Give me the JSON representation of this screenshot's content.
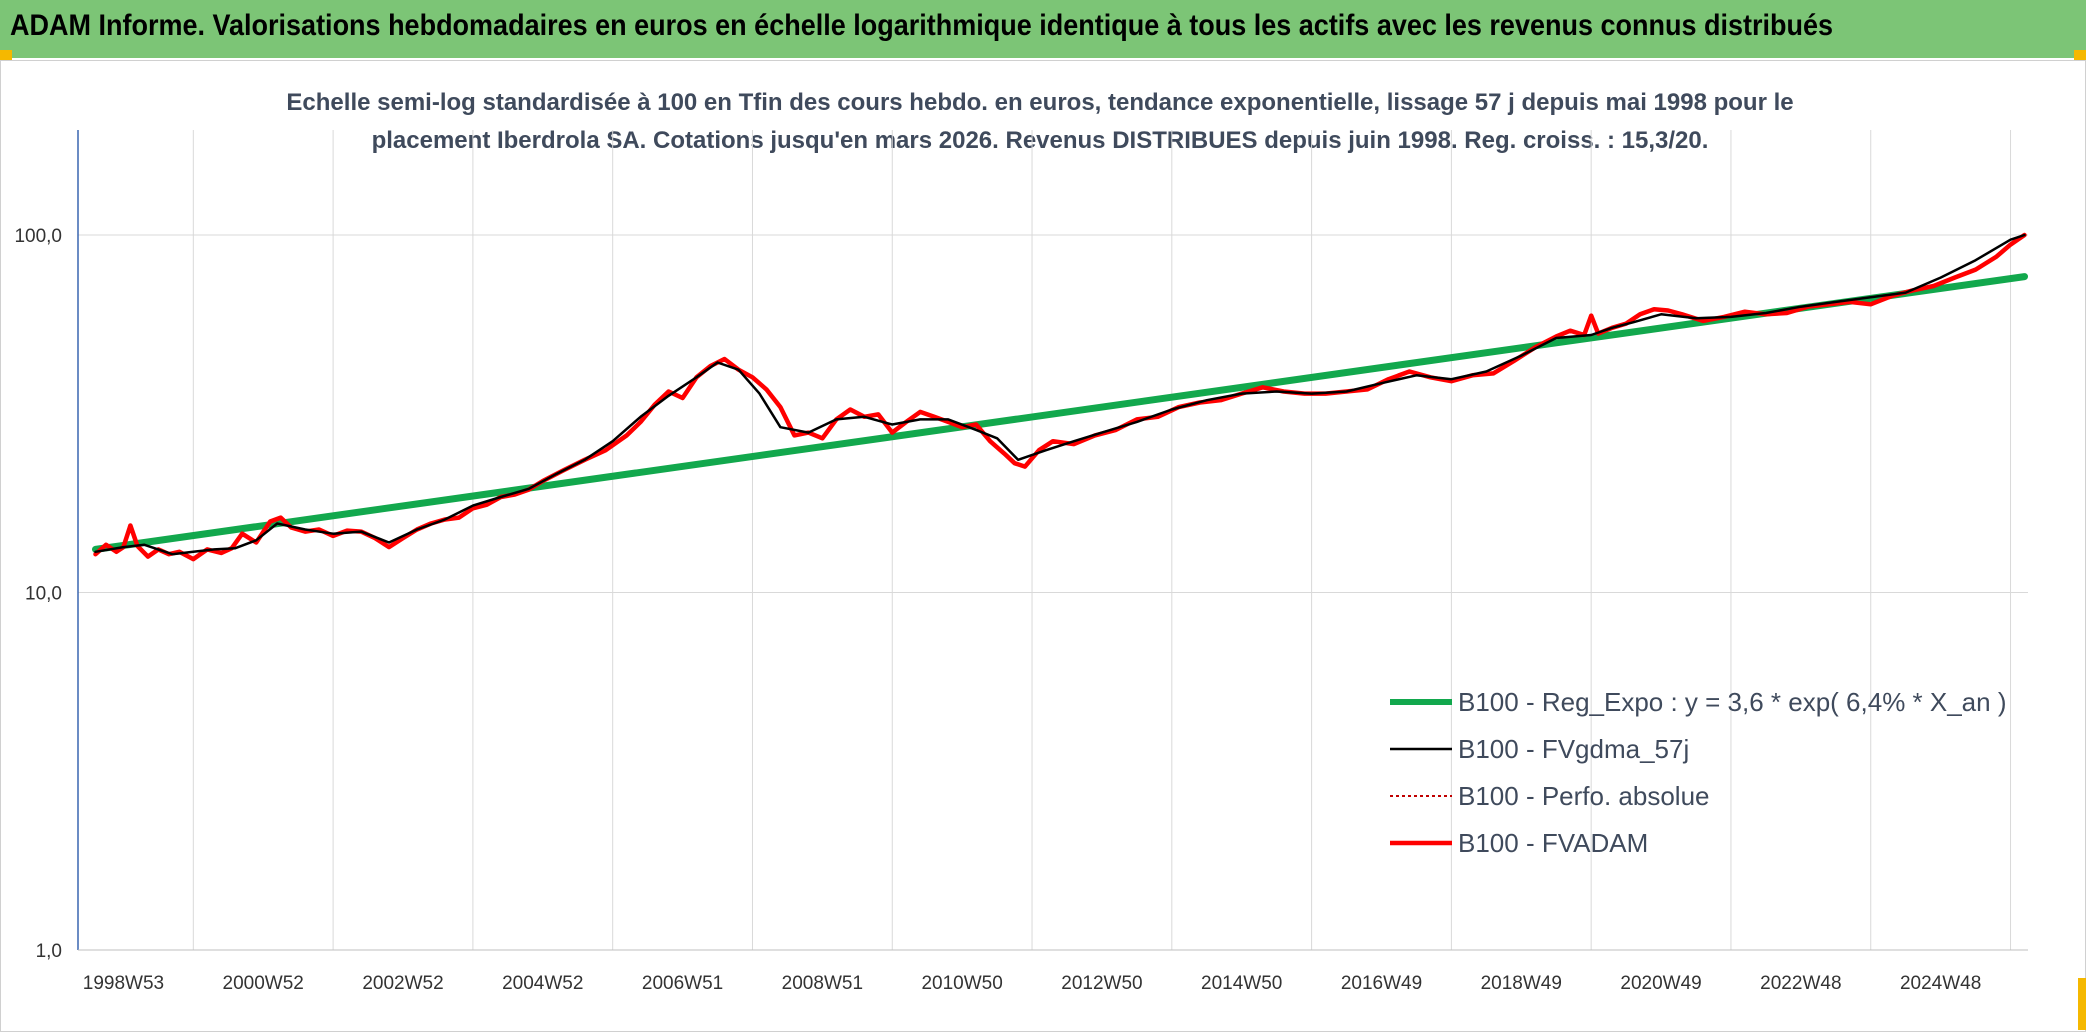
{
  "banner": {
    "title": "ADAM Informe. Valorisations hebdomadaires en euros en échelle logarithmique identique à tous les actifs avec les revenus connus distribués"
  },
  "colors": {
    "banner_bg": "#7cc576",
    "corner": "#f5b800",
    "trend": "#12a84d",
    "smooth": "#000000",
    "perf": "#c00000",
    "fvadam": "#ff0000",
    "grid": "#d9d9d9",
    "axis": "#3a66b0"
  },
  "chart_data": {
    "type": "line",
    "title_line1": "Echelle semi-log standardisée à 100 en Tfin des cours hebdo. en euros, tendance exponentielle, lissage 57 j depuis mai 1998 pour le",
    "title_line2": "placement Iberdrola SA. Cotations jusqu'en mars 2026. Revenus DISTRIBUES depuis juin 1998. Reg. croiss. : 15,3/20.",
    "y_scale": "log",
    "ylim": [
      1,
      100
    ],
    "y_ticks": [
      1,
      10,
      100
    ],
    "y_tick_labels": [
      "1,0",
      "10,0",
      "100,0"
    ],
    "xlim": [
      1998.35,
      2026.25
    ],
    "x_ticks": [
      1999.0,
      2001.0,
      2003.0,
      2005.0,
      2007.0,
      2009.0,
      2011.0,
      2013.0,
      2015.0,
      2017.0,
      2019.0,
      2021.0,
      2023.0,
      2025.0
    ],
    "x_tick_labels": [
      "1998W53",
      "2000W52",
      "2002W52",
      "2004W52",
      "2006W51",
      "2008W51",
      "2010W50",
      "2012W50",
      "2014W50",
      "2016W49",
      "2018W49",
      "2020W49",
      "2022W48",
      "2024W48"
    ],
    "grid": true,
    "legend_position": "bottom-right",
    "series": [
      {
        "name": "B100 - Reg_Expo : y = 3,6 * exp( 6,4% *  X_an )",
        "style": "trend",
        "x": [
          1998.6,
          2026.2
        ],
        "y": [
          13.2,
          76.5
        ]
      },
      {
        "name": "B100 - FVgdma_57j",
        "style": "smooth",
        "x": [
          1998.6,
          1999.0,
          1999.3,
          1999.7,
          2000.0,
          2000.3,
          2000.6,
          2000.9,
          2001.2,
          2001.6,
          2002.0,
          2002.4,
          2002.8,
          2003.2,
          2003.6,
          2004.0,
          2004.4,
          2004.8,
          2005.2,
          2005.6,
          2006.0,
          2006.4,
          2006.8,
          2007.2,
          2007.5,
          2007.8,
          2008.1,
          2008.4,
          2008.8,
          2009.2,
          2009.6,
          2010.0,
          2010.4,
          2010.8,
          2011.2,
          2011.5,
          2011.8,
          2012.2,
          2012.6,
          2013.0,
          2013.5,
          2014.0,
          2014.5,
          2015.0,
          2015.5,
          2016.0,
          2016.5,
          2017.0,
          2017.5,
          2018.0,
          2018.5,
          2019.0,
          2019.5,
          2020.0,
          2020.3,
          2020.6,
          2021.0,
          2021.5,
          2022.0,
          2022.5,
          2023.0,
          2023.5,
          2024.0,
          2024.5,
          2025.0,
          2025.5,
          2026.0,
          2026.2
        ],
        "y": [
          13.0,
          13.4,
          13.6,
          12.8,
          13.0,
          13.2,
          13.3,
          14.0,
          15.6,
          15.0,
          14.6,
          14.8,
          13.8,
          15.0,
          16.0,
          17.5,
          18.5,
          19.5,
          21.5,
          23.5,
          26.5,
          31.0,
          35.5,
          40.0,
          44.0,
          42.0,
          36.0,
          29.0,
          28.0,
          30.5,
          31.0,
          29.5,
          30.5,
          30.5,
          28.5,
          27.0,
          23.5,
          25.0,
          26.5,
          28.0,
          30.0,
          32.5,
          34.5,
          36.0,
          36.5,
          36.0,
          36.5,
          38.5,
          40.5,
          39.5,
          41.5,
          46.0,
          51.5,
          52.5,
          55.0,
          57.0,
          60.0,
          58.5,
          59.0,
          60.5,
          63.0,
          65.0,
          67.0,
          69.0,
          76.0,
          85.0,
          97.0,
          100.0
        ]
      },
      {
        "name": "B100 - Perfo. absolue",
        "style": "perf",
        "x": [],
        "y": []
      },
      {
        "name": "B100 - FVADAM",
        "style": "fvadam",
        "x": [
          1998.6,
          1998.75,
          1998.9,
          1999.0,
          1999.1,
          1999.2,
          1999.35,
          1999.5,
          1999.65,
          1999.8,
          2000.0,
          2000.2,
          2000.4,
          2000.55,
          2000.7,
          2000.9,
          2001.1,
          2001.25,
          2001.4,
          2001.6,
          2001.8,
          2002.0,
          2002.2,
          2002.4,
          2002.6,
          2002.8,
          2003.0,
          2003.2,
          2003.4,
          2003.6,
          2003.8,
          2004.0,
          2004.2,
          2004.4,
          2004.6,
          2004.8,
          2005.0,
          2005.3,
          2005.6,
          2005.9,
          2006.2,
          2006.4,
          2006.6,
          2006.8,
          2007.0,
          2007.2,
          2007.4,
          2007.6,
          2007.8,
          2008.0,
          2008.2,
          2008.4,
          2008.6,
          2008.8,
          2009.0,
          2009.2,
          2009.4,
          2009.6,
          2009.8,
          2010.0,
          2010.2,
          2010.4,
          2010.6,
          2010.8,
          2011.0,
          2011.2,
          2011.4,
          2011.6,
          2011.75,
          2011.9,
          2012.1,
          2012.3,
          2012.6,
          2012.9,
          2013.2,
          2013.5,
          2013.8,
          2014.1,
          2014.4,
          2014.7,
          2015.0,
          2015.3,
          2015.6,
          2015.9,
          2016.2,
          2016.5,
          2016.8,
          2017.1,
          2017.4,
          2017.7,
          2018.0,
          2018.3,
          2018.6,
          2018.9,
          2019.2,
          2019.5,
          2019.7,
          2019.9,
          2020.0,
          2020.1,
          2020.3,
          2020.5,
          2020.7,
          2020.9,
          2021.1,
          2021.3,
          2021.6,
          2021.9,
          2022.2,
          2022.5,
          2022.8,
          2023.1,
          2023.4,
          2023.7,
          2024.0,
          2024.3,
          2024.6,
          2024.9,
          2025.2,
          2025.5,
          2025.8,
          2026.0,
          2026.2
        ],
        "y": [
          12.8,
          13.6,
          13.0,
          13.4,
          15.4,
          13.5,
          12.6,
          13.2,
          12.8,
          13.0,
          12.4,
          13.2,
          12.9,
          13.3,
          14.6,
          13.8,
          15.8,
          16.2,
          15.2,
          14.8,
          15.0,
          14.4,
          14.9,
          14.8,
          14.2,
          13.4,
          14.2,
          15.0,
          15.6,
          16.0,
          16.2,
          17.2,
          17.6,
          18.5,
          18.8,
          19.4,
          20.5,
          22.0,
          23.5,
          25.0,
          27.5,
          30.0,
          33.5,
          36.5,
          35.0,
          40.0,
          43.0,
          45.0,
          42.0,
          40.0,
          37.0,
          33.0,
          27.5,
          28.0,
          27.0,
          30.5,
          32.5,
          31.0,
          31.5,
          28.0,
          30.0,
          32.0,
          31.0,
          30.0,
          29.0,
          29.5,
          26.5,
          24.5,
          23.0,
          22.5,
          25.0,
          26.5,
          26.0,
          27.5,
          28.5,
          30.5,
          31.0,
          33.0,
          34.0,
          34.5,
          36.0,
          37.5,
          36.5,
          36.0,
          36.0,
          36.5,
          37.0,
          39.5,
          41.5,
          40.0,
          39.0,
          40.5,
          41.0,
          44.5,
          48.5,
          52.0,
          54.0,
          52.5,
          59.5,
          53.0,
          55.0,
          56.5,
          60.0,
          62.0,
          61.5,
          60.0,
          57.5,
          59.0,
          61.0,
          60.0,
          60.5,
          63.0,
          64.0,
          65.0,
          64.0,
          67.5,
          70.0,
          72.0,
          76.0,
          80.0,
          87.0,
          94.0,
          100.0
        ]
      }
    ]
  }
}
